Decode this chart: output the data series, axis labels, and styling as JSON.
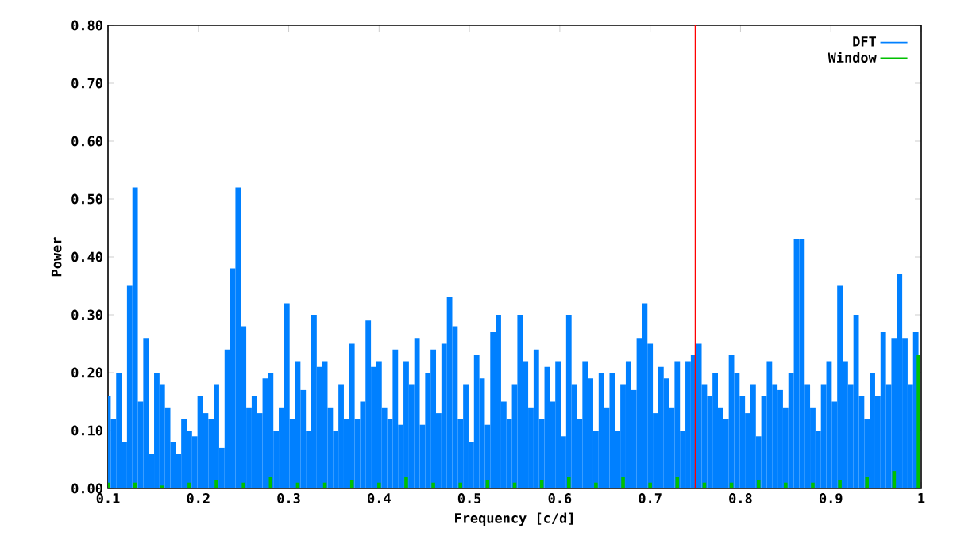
{
  "chart_data": {
    "type": "bar",
    "xlabel": "Frequency [c/d]",
    "ylabel": "Power",
    "xlim": [
      0.1,
      1
    ],
    "ylim": [
      0,
      0.8
    ],
    "xticks": [
      0.1,
      0.2,
      0.3,
      0.4,
      0.5,
      0.6,
      0.7,
      0.8,
      0.9,
      1
    ],
    "yticks": [
      {
        "value": 0,
        "label": "0.00"
      },
      {
        "value": 0.1,
        "label": "0.10"
      },
      {
        "value": 0.2,
        "label": "0.20"
      },
      {
        "value": 0.3,
        "label": "0.30"
      },
      {
        "value": 0.4,
        "label": "0.40"
      },
      {
        "value": 0.5,
        "label": "0.50"
      },
      {
        "value": 0.6,
        "label": "0.60"
      },
      {
        "value": 0.7,
        "label": "0.70"
      },
      {
        "value": 0.8,
        "label": "0.80"
      }
    ],
    "legend": "top right",
    "grid": false,
    "ref_lines": [
      {
        "axis": "x",
        "value": 0.75,
        "color": "#ff0000"
      }
    ],
    "series": [
      {
        "name": "DFT",
        "color": "#0080ff",
        "x": [
          0.1,
          0.106,
          0.112,
          0.118,
          0.124,
          0.13,
          0.136,
          0.142,
          0.148,
          0.154,
          0.16,
          0.166,
          0.172,
          0.178,
          0.184,
          0.19,
          0.196,
          0.202,
          0.208,
          0.214,
          0.22,
          0.226,
          0.232,
          0.238,
          0.244,
          0.25,
          0.256,
          0.262,
          0.268,
          0.274,
          0.28,
          0.286,
          0.292,
          0.298,
          0.304,
          0.31,
          0.316,
          0.322,
          0.328,
          0.334,
          0.34,
          0.346,
          0.352,
          0.358,
          0.364,
          0.37,
          0.376,
          0.382,
          0.388,
          0.394,
          0.4,
          0.406,
          0.412,
          0.418,
          0.424,
          0.43,
          0.436,
          0.442,
          0.448,
          0.454,
          0.46,
          0.466,
          0.472,
          0.478,
          0.484,
          0.49,
          0.496,
          0.502,
          0.508,
          0.514,
          0.52,
          0.526,
          0.532,
          0.538,
          0.544,
          0.55,
          0.556,
          0.562,
          0.568,
          0.574,
          0.58,
          0.586,
          0.592,
          0.598,
          0.604,
          0.61,
          0.616,
          0.622,
          0.628,
          0.634,
          0.64,
          0.646,
          0.652,
          0.658,
          0.664,
          0.67,
          0.676,
          0.682,
          0.688,
          0.694,
          0.7,
          0.706,
          0.712,
          0.718,
          0.724,
          0.73,
          0.736,
          0.742,
          0.748,
          0.754,
          0.76,
          0.766,
          0.772,
          0.778,
          0.784,
          0.79,
          0.796,
          0.802,
          0.808,
          0.814,
          0.82,
          0.826,
          0.832,
          0.838,
          0.844,
          0.85,
          0.856,
          0.862,
          0.868,
          0.874,
          0.88,
          0.886,
          0.892,
          0.898,
          0.904,
          0.91,
          0.916,
          0.922,
          0.928,
          0.934,
          0.94,
          0.946,
          0.952,
          0.958,
          0.964,
          0.97,
          0.976,
          0.982,
          0.988,
          0.994
        ],
        "values": [
          0.16,
          0.12,
          0.2,
          0.08,
          0.35,
          0.52,
          0.15,
          0.26,
          0.06,
          0.2,
          0.18,
          0.14,
          0.08,
          0.06,
          0.12,
          0.1,
          0.09,
          0.16,
          0.13,
          0.12,
          0.18,
          0.07,
          0.24,
          0.38,
          0.52,
          0.28,
          0.14,
          0.16,
          0.13,
          0.19,
          0.2,
          0.1,
          0.14,
          0.32,
          0.12,
          0.22,
          0.17,
          0.1,
          0.3,
          0.21,
          0.22,
          0.14,
          0.1,
          0.18,
          0.12,
          0.25,
          0.12,
          0.15,
          0.29,
          0.21,
          0.22,
          0.14,
          0.12,
          0.24,
          0.11,
          0.22,
          0.18,
          0.26,
          0.11,
          0.2,
          0.24,
          0.13,
          0.25,
          0.33,
          0.28,
          0.12,
          0.18,
          0.08,
          0.23,
          0.19,
          0.11,
          0.27,
          0.3,
          0.15,
          0.12,
          0.18,
          0.3,
          0.22,
          0.14,
          0.24,
          0.12,
          0.21,
          0.15,
          0.22,
          0.09,
          0.3,
          0.18,
          0.12,
          0.22,
          0.19,
          0.1,
          0.2,
          0.14,
          0.2,
          0.1,
          0.18,
          0.22,
          0.17,
          0.26,
          0.32,
          0.25,
          0.13,
          0.21,
          0.19,
          0.14,
          0.22,
          0.1,
          0.22,
          0.23,
          0.25,
          0.18,
          0.16,
          0.2,
          0.14,
          0.12,
          0.23,
          0.2,
          0.16,
          0.13,
          0.18,
          0.09,
          0.16,
          0.22,
          0.18,
          0.17,
          0.14,
          0.2,
          0.43,
          0.43,
          0.18,
          0.14,
          0.1,
          0.18,
          0.22,
          0.15,
          0.35,
          0.22,
          0.18,
          0.3,
          0.16,
          0.12,
          0.2,
          0.16,
          0.27,
          0.18,
          0.26,
          0.37,
          0.26,
          0.18,
          0.27
        ]
      },
      {
        "name": "Window",
        "color": "#00c000",
        "x": [
          0.1,
          0.13,
          0.16,
          0.19,
          0.22,
          0.25,
          0.28,
          0.31,
          0.34,
          0.37,
          0.4,
          0.43,
          0.46,
          0.49,
          0.52,
          0.55,
          0.58,
          0.61,
          0.64,
          0.67,
          0.7,
          0.73,
          0.76,
          0.79,
          0.82,
          0.85,
          0.88,
          0.91,
          0.94,
          0.97,
          0.997
        ],
        "values": [
          0.01,
          0.01,
          0.005,
          0.01,
          0.015,
          0.01,
          0.02,
          0.01,
          0.01,
          0.015,
          0.01,
          0.02,
          0.01,
          0.01,
          0.015,
          0.01,
          0.015,
          0.02,
          0.01,
          0.02,
          0.01,
          0.02,
          0.01,
          0.01,
          0.015,
          0.01,
          0.01,
          0.015,
          0.02,
          0.03,
          0.23
        ]
      }
    ]
  }
}
